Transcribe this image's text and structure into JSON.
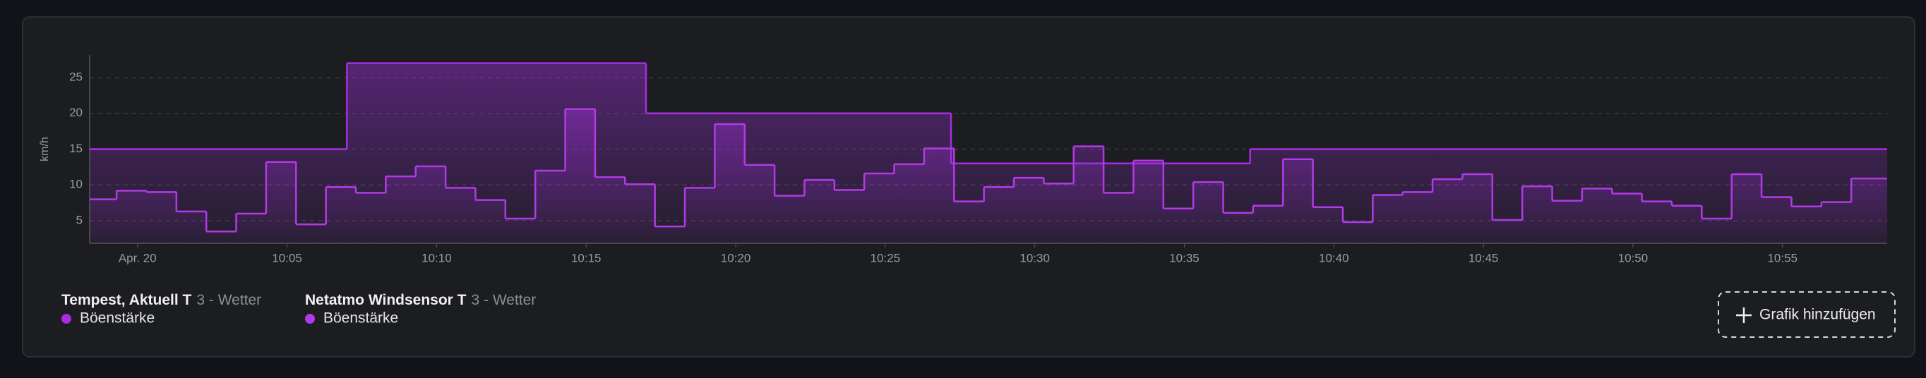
{
  "chart_data": {
    "type": "step-line",
    "y_label": "km/h",
    "xlim": [
      -1.6,
      58.5
    ],
    "ylim": [
      1.85,
      28.15
    ],
    "xticks": [
      {
        "value": 0,
        "label": "Apr. 20"
      },
      {
        "value": 5,
        "label": "10:05"
      },
      {
        "value": 10,
        "label": "10:10"
      },
      {
        "value": 15,
        "label": "10:15"
      },
      {
        "value": 20,
        "label": "10:20"
      },
      {
        "value": 25,
        "label": "10:25"
      },
      {
        "value": 30,
        "label": "10:30"
      },
      {
        "value": 35,
        "label": "10:35"
      },
      {
        "value": 40,
        "label": "10:40"
      },
      {
        "value": 45,
        "label": "10:45"
      },
      {
        "value": 50,
        "label": "10:50"
      },
      {
        "value": 55,
        "label": "10:55"
      }
    ],
    "yticks": [
      5,
      10,
      15,
      20,
      25
    ],
    "grid": true,
    "series": [
      {
        "device": "Tempest, Aktuell T",
        "area": "3 - Wetter",
        "name": "Böenstärke",
        "color": "#a62ee0",
        "x": [
          -1.6,
          7,
          17,
          27.2,
          37.2
        ],
        "values": [
          15,
          27,
          20,
          13,
          15
        ]
      },
      {
        "device": "Netatmo Windsensor T",
        "area": "3 - Wetter",
        "name": "Böenstärke",
        "color": "#b23ae6",
        "x": [
          -1.6,
          -0.7,
          0.3,
          1.3,
          2.3,
          3.3,
          4.3,
          5.3,
          6.3,
          7.3,
          8.3,
          9.3,
          10.3,
          11.3,
          12.3,
          13.3,
          14.3,
          15.3,
          16.3,
          17.3,
          18.3,
          19.3,
          20.3,
          21.3,
          22.3,
          23.3,
          24.3,
          25.3,
          26.3,
          27.3,
          28.3,
          29.3,
          30.3,
          31.3,
          32.3,
          33.3,
          34.3,
          35.3,
          36.3,
          37.3,
          38.3,
          39.3,
          40.3,
          41.3,
          42.3,
          43.3,
          44.3,
          45.3,
          46.3,
          47.3,
          48.3,
          49.3,
          50.3,
          51.3,
          52.3,
          53.3,
          54.3,
          55.3,
          56.3,
          57.3
        ],
        "values": [
          8,
          9.2,
          9,
          6.3,
          3.5,
          6,
          13.2,
          4.5,
          9.7,
          8.9,
          11.2,
          12.6,
          9.6,
          7.9,
          5.3,
          12,
          20.6,
          11.1,
          10.1,
          4.2,
          9.6,
          18.5,
          12.8,
          8.5,
          10.7,
          9.3,
          11.6,
          12.9,
          15.1,
          7.7,
          9.7,
          11,
          10.2,
          15.4,
          8.9,
          13.4,
          6.7,
          10.4,
          6.1,
          7.1,
          13.6,
          6.9,
          4.8,
          8.6,
          9,
          10.8,
          11.5,
          5.1,
          9.8,
          7.8,
          9.5,
          8.8,
          7.7,
          7.1,
          5.3,
          11.5,
          8.3,
          7,
          7.6,
          10.9
        ]
      }
    ]
  },
  "button": "Grafik hinzufügen"
}
